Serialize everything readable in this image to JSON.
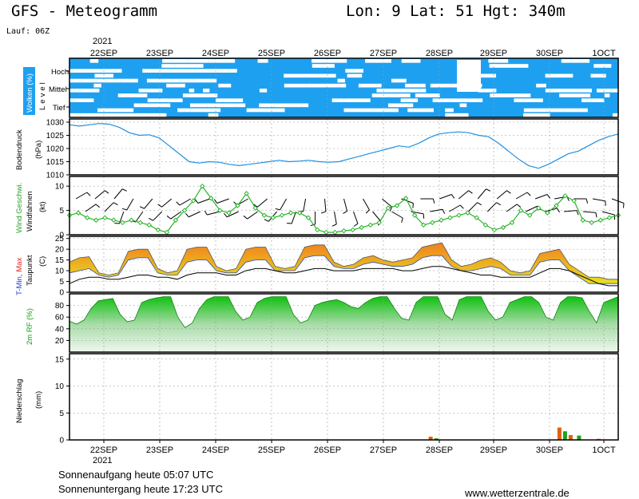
{
  "header": {
    "title": "GFS - Meteogramm",
    "location": "Lon: 9  Lat: 51  Hgt: 340m",
    "run": "Lauf: 06Z"
  },
  "footer": {
    "sunrise": "Sonnenaufgang heute 05:07 UTC",
    "sunset": "Sonnenuntergang heute 17:23 UTC",
    "site": "www.wetterzentrale.de"
  },
  "colors": {
    "cloud": "#1ea0f0",
    "pressure": "#1e90e0",
    "wind": "#28b428",
    "tmax_fill": "#f0a020",
    "tmin_fill": "#e8e020",
    "humidity": "#10c010",
    "precip_rain": "#e06010",
    "precip_other": "#20a020"
  },
  "chart_data": {
    "type": "line",
    "time_axis": {
      "year": "2021",
      "dates": [
        "22SEP",
        "23SEP",
        "24SEP",
        "25SEP",
        "26SEP",
        "27SEP",
        "28SEP",
        "29SEP",
        "30SEP",
        "1OCT"
      ],
      "date_labels": [
        "22SEP",
        "23SEP",
        "24SEP",
        "25SEP",
        "26SEP",
        "27SEP",
        "28SEP",
        "29SEP",
        "30SEP",
        "1OCT"
      ]
    },
    "panels": {
      "clouds": {
        "ylabel": "Wolken (%)",
        "level_label": "Level",
        "levels": [
          "Hoch",
          "Mittel",
          "Tief"
        ]
      },
      "pressure": {
        "ylabel": "Bodendruck",
        "unit": "(hPa)",
        "ylim": [
          1010,
          1030
        ],
        "yticks": [
          1010,
          1015,
          1020,
          1025,
          1030
        ],
        "values": [
          1029,
          1028.5,
          1029,
          1029.5,
          1029.2,
          1028,
          1026,
          1025,
          1025.2,
          1024,
          1021,
          1018,
          1015,
          1014.5,
          1015,
          1014.8,
          1014,
          1013.5,
          1014,
          1014.5,
          1015,
          1015.5,
          1015,
          1015.2,
          1015.5,
          1015,
          1014.8,
          1015,
          1016,
          1017,
          1018,
          1019,
          1020,
          1021,
          1020.5,
          1022,
          1024,
          1025.5,
          1026,
          1026.3,
          1026,
          1025,
          1024.5,
          1022,
          1019,
          1016,
          1013.5,
          1012.5,
          1014,
          1016,
          1018,
          1019,
          1021,
          1023,
          1024.5,
          1025.5
        ]
      },
      "wind": {
        "ylabel": "Wind Geschwi.",
        "ylabel2": "Windfahnen",
        "unit": "(kt)",
        "ylim": [
          0,
          12
        ],
        "yticks": [
          0,
          5,
          10
        ],
        "speed": [
          4,
          4.5,
          3.5,
          3,
          3.5,
          3,
          2.5,
          3,
          2.5,
          2,
          1,
          0.5,
          3,
          5,
          7,
          10,
          7.5,
          5,
          4.5,
          6,
          8.5,
          5.5,
          4,
          3.5,
          4,
          4.5,
          4.5,
          3.5,
          1,
          0.5,
          0.5,
          0.8,
          1,
          1.5,
          2,
          2.5,
          5.5,
          6,
          7.5,
          4,
          2,
          2.5,
          3,
          3.5,
          4,
          4.5,
          3.5,
          2,
          1,
          1.5,
          2.5,
          5,
          4,
          5.5,
          4.5,
          6,
          8,
          7,
          3,
          2.5,
          3,
          3.5,
          4
        ],
        "barb_dirs": [
          60,
          55,
          50,
          45,
          40,
          200,
          210,
          215,
          220,
          225,
          230,
          235,
          240,
          245,
          250,
          255,
          250,
          245,
          240,
          235,
          230,
          220,
          210,
          200,
          190,
          180,
          175,
          170,
          165,
          160,
          150,
          140,
          130,
          120,
          110,
          100,
          90,
          80,
          70,
          60,
          50,
          45,
          40,
          45,
          50,
          55,
          60,
          65,
          70,
          75,
          80,
          85,
          90,
          95,
          100,
          105,
          110
        ]
      },
      "temperature": {
        "ylabel_parts": [
          "T-Min,",
          "Max"
        ],
        "ylabel2": "Taupunkt",
        "unit": "(C)",
        "ylim": [
          0,
          26
        ],
        "yticks": [
          0,
          5,
          10,
          15,
          20,
          25
        ],
        "tmax": [
          14,
          16,
          16.5,
          9,
          8,
          9,
          19,
          20,
          20,
          11,
          9,
          10,
          20,
          21,
          21,
          12,
          10,
          11,
          20,
          21,
          21,
          12,
          11,
          12,
          21,
          22,
          22,
          14,
          12,
          13,
          16,
          17,
          15,
          14,
          15,
          16,
          21,
          22,
          23,
          15,
          12,
          13,
          15,
          16,
          14,
          10,
          9,
          10,
          18,
          19,
          20,
          13,
          10,
          7,
          7,
          6,
          6
        ],
        "tmin": [
          9,
          10,
          11,
          8,
          7,
          8,
          15,
          16,
          16,
          9,
          8,
          8,
          14,
          15,
          15,
          10,
          9,
          9,
          14,
          15,
          15,
          10,
          10,
          10,
          16,
          17,
          17,
          12,
          11,
          11,
          13,
          14,
          13,
          12,
          12,
          13,
          16,
          17,
          17,
          12,
          10,
          10,
          11,
          12,
          11,
          8,
          8,
          8,
          14,
          15,
          15,
          10,
          7,
          4,
          4,
          4,
          4
        ],
        "dewpoint": [
          4,
          6,
          7,
          7,
          6,
          6,
          7,
          8,
          8,
          7,
          7,
          6,
          8,
          9,
          9,
          9,
          8,
          8,
          10,
          11,
          11,
          10,
          9,
          9,
          10,
          11,
          11,
          10,
          10,
          10,
          11,
          11,
          11,
          11,
          10,
          10,
          11,
          12,
          12,
          11,
          10,
          9,
          8,
          8,
          7,
          7,
          7,
          7,
          9,
          11,
          11,
          10,
          8,
          6,
          4,
          3,
          3
        ]
      },
      "humidity": {
        "ylabel": "2m RF (%)",
        "ylim": [
          0,
          100
        ],
        "yticks": [
          20,
          40,
          60,
          80
        ],
        "values": [
          53,
          48,
          55,
          75,
          88,
          90,
          92,
          65,
          52,
          55,
          85,
          90,
          93,
          95,
          95,
          60,
          42,
          50,
          75,
          90,
          95,
          95,
          95,
          70,
          55,
          60,
          85,
          92,
          95,
          95,
          95,
          65,
          50,
          55,
          80,
          85,
          88,
          90,
          85,
          78,
          75,
          85,
          92,
          95,
          95,
          75,
          58,
          55,
          85,
          95,
          95,
          95,
          65,
          55,
          90,
          95,
          95,
          95,
          70,
          55,
          60,
          85,
          90,
          95,
          95,
          85,
          60,
          55,
          85,
          95,
          95,
          93,
          70,
          50,
          85,
          90,
          95
        ]
      },
      "precip": {
        "ylabel": "Niederschlag",
        "unit": "(mm)",
        "ylim": [
          0,
          16
        ],
        "yticks": [
          0,
          5,
          10,
          15
        ],
        "bars": [
          {
            "t": 6.45,
            "v": 0.6,
            "kind": "rain"
          },
          {
            "t": 6.55,
            "v": 0.3,
            "kind": "other"
          },
          {
            "t": 8.75,
            "v": 2.3,
            "kind": "rain"
          },
          {
            "t": 8.85,
            "v": 1.6,
            "kind": "other"
          },
          {
            "t": 8.95,
            "v": 0.9,
            "kind": "rain"
          },
          {
            "t": 9.1,
            "v": 0.8,
            "kind": "other"
          },
          {
            "t": 9.45,
            "v": 0.2,
            "kind": "rain"
          }
        ]
      }
    }
  }
}
